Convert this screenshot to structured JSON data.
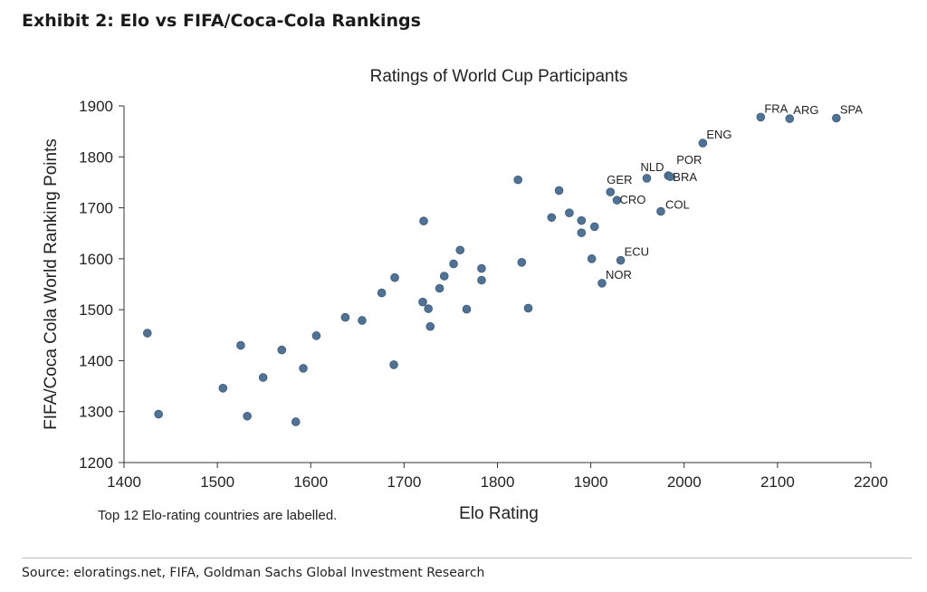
{
  "exhibit": {
    "title": "Exhibit 2: Elo vs FIFA/Coca-Cola Rankings"
  },
  "footnote": "Top 12 Elo-rating countries are labelled.",
  "source": "Source: eloratings.net, FIFA, Goldman Sachs Global Investment Research",
  "chart_data": {
    "type": "scatter",
    "title": "Ratings of World Cup Participants",
    "xlabel": "Elo Rating",
    "ylabel": "FIFA/Coca Cola World Ranking Points",
    "xlim": [
      1400,
      2200
    ],
    "ylim": [
      1200,
      1900
    ],
    "xticks": [
      1400,
      1500,
      1600,
      1700,
      1800,
      1900,
      2000,
      2100,
      2200
    ],
    "yticks": [
      1200,
      1300,
      1400,
      1500,
      1600,
      1700,
      1800,
      1900
    ],
    "grid": false,
    "point_color": "#4f7396",
    "points": [
      {
        "x": 1425,
        "y": 1454
      },
      {
        "x": 1437,
        "y": 1295
      },
      {
        "x": 1506,
        "y": 1346
      },
      {
        "x": 1525,
        "y": 1430
      },
      {
        "x": 1532,
        "y": 1291
      },
      {
        "x": 1549,
        "y": 1367
      },
      {
        "x": 1569,
        "y": 1421
      },
      {
        "x": 1584,
        "y": 1280
      },
      {
        "x": 1592,
        "y": 1385
      },
      {
        "x": 1606,
        "y": 1449
      },
      {
        "x": 1637,
        "y": 1485
      },
      {
        "x": 1655,
        "y": 1479
      },
      {
        "x": 1676,
        "y": 1533
      },
      {
        "x": 1689,
        "y": 1392
      },
      {
        "x": 1690,
        "y": 1563
      },
      {
        "x": 1720,
        "y": 1515
      },
      {
        "x": 1721,
        "y": 1674
      },
      {
        "x": 1726,
        "y": 1502
      },
      {
        "x": 1728,
        "y": 1467
      },
      {
        "x": 1738,
        "y": 1542
      },
      {
        "x": 1743,
        "y": 1566
      },
      {
        "x": 1753,
        "y": 1590
      },
      {
        "x": 1760,
        "y": 1617
      },
      {
        "x": 1767,
        "y": 1501
      },
      {
        "x": 1783,
        "y": 1581
      },
      {
        "x": 1783,
        "y": 1558
      },
      {
        "x": 1822,
        "y": 1755
      },
      {
        "x": 1826,
        "y": 1593
      },
      {
        "x": 1833,
        "y": 1503
      },
      {
        "x": 1858,
        "y": 1681
      },
      {
        "x": 1866,
        "y": 1734
      },
      {
        "x": 1877,
        "y": 1690
      },
      {
        "x": 1890,
        "y": 1675
      },
      {
        "x": 1890,
        "y": 1651
      },
      {
        "x": 1901,
        "y": 1600
      },
      {
        "x": 1904,
        "y": 1663
      },
      {
        "x": 1912,
        "y": 1552,
        "label": "NOR"
      },
      {
        "x": 1921,
        "y": 1731,
        "label": "GER"
      },
      {
        "x": 1928,
        "y": 1715,
        "label": "CRO"
      },
      {
        "x": 1932,
        "y": 1597,
        "label": "ECU"
      },
      {
        "x": 1960,
        "y": 1758,
        "label": "NLD"
      },
      {
        "x": 1975,
        "y": 1693,
        "label": "COL"
      },
      {
        "x": 1983,
        "y": 1763,
        "label": "POR"
      },
      {
        "x": 1985,
        "y": 1761,
        "label": "BRA"
      },
      {
        "x": 2020,
        "y": 1827,
        "label": "ENG"
      },
      {
        "x": 2082,
        "y": 1878,
        "label": "FRA"
      },
      {
        "x": 2113,
        "y": 1875,
        "label": "ARG"
      },
      {
        "x": 2163,
        "y": 1876,
        "label": "SPA"
      }
    ]
  }
}
